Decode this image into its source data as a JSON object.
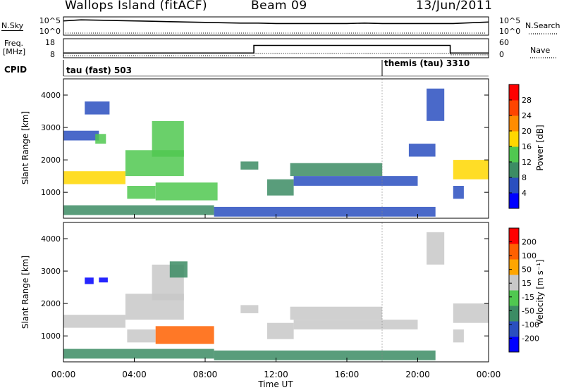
{
  "header": {
    "title": "Wallops Island (fitACF)",
    "beam": "Beam 09",
    "date": "13/Jun/2011"
  },
  "side_labels": {
    "nsky": "N.Sky",
    "nsearch": "N.Search",
    "freq_line1": "Freq.",
    "freq_line2": "[MHz]",
    "nave": "Nave",
    "cpid": "CPID"
  },
  "chart_data": [
    {
      "type": "line",
      "name": "noise-panel",
      "series": [
        {
          "name": "N.Sky",
          "x": [
            "00:00",
            "01:00",
            "02:00",
            "03:00",
            "04:00",
            "05:00",
            "06:00",
            "07:00",
            "08:00",
            "09:00",
            "10:00",
            "11:00",
            "12:00",
            "13:00",
            "14:00",
            "15:00",
            "16:00",
            "17:00",
            "18:00",
            "19:00",
            "20:00",
            "21:00",
            "22:00",
            "23:00",
            "24:00"
          ],
          "values": [
            3.9,
            4.2,
            4.1,
            4.0,
            3.9,
            3.8,
            3.7,
            3.6,
            3.5,
            3.4,
            3.3,
            3.3,
            3.2,
            3.2,
            3.2,
            3.2,
            3.2,
            3.3,
            3.2,
            3.2,
            3.2,
            3.2,
            3.2,
            3.4,
            3.6
          ]
        },
        {
          "name": "N.Search",
          "x": [
            "00:00",
            "24:00"
          ],
          "values": [
            0,
            0
          ]
        }
      ],
      "left_ticks": [
        "10^5",
        "10^0"
      ],
      "right_ticks": [
        "10^5",
        "10^0"
      ]
    },
    {
      "type": "line",
      "name": "frequency-panel",
      "series": [
        {
          "name": "Freq.",
          "x": [
            "00:00",
            "10:45",
            "10:45",
            "21:50",
            "21:50",
            "24:00"
          ],
          "values": [
            10.5,
            10.5,
            14.5,
            14.5,
            10.5,
            10.5
          ]
        },
        {
          "name": "Nave",
          "x": [
            "00:00",
            "10:45",
            "10:45",
            "21:50",
            "21:50",
            "24:00"
          ],
          "values": [
            2,
            2,
            10,
            10,
            5,
            5
          ]
        }
      ],
      "left_ticks": [
        "18",
        "8"
      ],
      "right_ticks": [
        "60",
        "0"
      ]
    },
    {
      "type": "table",
      "name": "cpid-panel",
      "entries": [
        {
          "start": "00:00",
          "label": "tau (fast) 503"
        },
        {
          "start": "18:00",
          "label": "themis (tau) 3310"
        }
      ]
    },
    {
      "type": "heatmap",
      "name": "power-panel",
      "ylabel": "Slant Range [km]",
      "ylim": [
        200,
        4500
      ],
      "yticks": [
        "1000",
        "2000",
        "3000",
        "4000"
      ],
      "colorbar_label": "Power [dB]",
      "colorbar_ticks": [
        "4",
        "8",
        "12",
        "16",
        "20",
        "24",
        "28"
      ],
      "colorbar_range": [
        0,
        32
      ],
      "colors": [
        "#0000ff",
        "#2a4fbf",
        "#3c8c64",
        "#50c850",
        "#ffd700",
        "#ff8c00",
        "#ff4500",
        "#ff0000"
      ],
      "regions": [
        {
          "x": [
            0.0,
            3.5
          ],
          "y": [
            1250,
            1650
          ],
          "v": 18
        },
        {
          "x": [
            3.5,
            6.8
          ],
          "y": [
            1500,
            2300
          ],
          "v": 14
        },
        {
          "x": [
            5.0,
            6.8
          ],
          "y": [
            2100,
            3200
          ],
          "v": 12
        },
        {
          "x": [
            0.0,
            2.0
          ],
          "y": [
            2600,
            2900
          ],
          "v": 6
        },
        {
          "x": [
            1.8,
            2.4
          ],
          "y": [
            2500,
            2800
          ],
          "v": 14
        },
        {
          "x": [
            3.6,
            5.2
          ],
          "y": [
            800,
            1200
          ],
          "v": 14
        },
        {
          "x": [
            5.2,
            8.7
          ],
          "y": [
            750,
            1300
          ],
          "v": 12
        },
        {
          "x": [
            0.0,
            8.5
          ],
          "y": [
            300,
            600
          ],
          "v": 8
        },
        {
          "x": [
            10.0,
            11.0
          ],
          "y": [
            1700,
            1950
          ],
          "v": 10
        },
        {
          "x": [
            11.5,
            13.0
          ],
          "y": [
            900,
            1400
          ],
          "v": 10
        },
        {
          "x": [
            12.8,
            18.0
          ],
          "y": [
            1500,
            1900
          ],
          "v": 8
        },
        {
          "x": [
            13.0,
            20.0
          ],
          "y": [
            1200,
            1500
          ],
          "v": 6
        },
        {
          "x": [
            8.5,
            21.0
          ],
          "y": [
            250,
            550
          ],
          "v": 6
        },
        {
          "x": [
            19.5,
            21.0
          ],
          "y": [
            2100,
            2500
          ],
          "v": 6
        },
        {
          "x": [
            20.5,
            21.5
          ],
          "y": [
            3200,
            4200
          ],
          "v": 6
        },
        {
          "x": [
            22.0,
            24.0
          ],
          "y": [
            1400,
            2000
          ],
          "v": 16
        },
        {
          "x": [
            22.0,
            22.6
          ],
          "y": [
            800,
            1200
          ],
          "v": 6
        },
        {
          "x": [
            1.2,
            2.6
          ],
          "y": [
            3400,
            3800
          ],
          "v": 4
        }
      ]
    },
    {
      "type": "heatmap",
      "name": "velocity-panel",
      "ylabel": "Slant Range [km]",
      "ylim": [
        200,
        4500
      ],
      "yticks": [
        "1000",
        "2000",
        "3000",
        "4000"
      ],
      "colorbar_label": "Velocity [m s⁻¹]",
      "colorbar_ticks": [
        "200",
        "100",
        "50",
        "15",
        "-15",
        "-50",
        "-100",
        "-200"
      ],
      "colorbar_range": [
        -250,
        250
      ],
      "colors": [
        "#0000ff",
        "#2a4fbf",
        "#3c8c64",
        "#50c850",
        "#c8c8c8",
        "#ffa500",
        "#ff6000",
        "#ff0000"
      ],
      "regions": [
        {
          "x": [
            0.0,
            3.5
          ],
          "y": [
            1250,
            1650
          ],
          "v": 0
        },
        {
          "x": [
            3.5,
            6.8
          ],
          "y": [
            1500,
            2300
          ],
          "v": 0
        },
        {
          "x": [
            5.0,
            6.8
          ],
          "y": [
            2100,
            3200
          ],
          "v": 0
        },
        {
          "x": [
            6.0,
            7.0
          ],
          "y": [
            2800,
            3300
          ],
          "v": 30
        },
        {
          "x": [
            1.2,
            1.7
          ],
          "y": [
            2600,
            2800
          ],
          "v": 220
        },
        {
          "x": [
            2.0,
            2.5
          ],
          "y": [
            2650,
            2800
          ],
          "v": 200
        },
        {
          "x": [
            3.6,
            5.2
          ],
          "y": [
            800,
            1200
          ],
          "v": 0
        },
        {
          "x": [
            5.2,
            8.5
          ],
          "y": [
            750,
            1300
          ],
          "v": -60
        },
        {
          "x": [
            0.0,
            8.5
          ],
          "y": [
            300,
            600
          ],
          "v": 30
        },
        {
          "x": [
            8.5,
            21.0
          ],
          "y": [
            250,
            550
          ],
          "v": 30
        },
        {
          "x": [
            10.0,
            11.0
          ],
          "y": [
            1700,
            1950
          ],
          "v": 0
        },
        {
          "x": [
            11.5,
            13.0
          ],
          "y": [
            900,
            1400
          ],
          "v": 0
        },
        {
          "x": [
            12.8,
            18.0
          ],
          "y": [
            1500,
            1900
          ],
          "v": 0
        },
        {
          "x": [
            13.0,
            20.0
          ],
          "y": [
            1200,
            1500
          ],
          "v": 0
        },
        {
          "x": [
            20.5,
            21.5
          ],
          "y": [
            3200,
            4200
          ],
          "v": 0
        },
        {
          "x": [
            22.0,
            24.0
          ],
          "y": [
            1400,
            2000
          ],
          "v": 0
        },
        {
          "x": [
            22.0,
            22.6
          ],
          "y": [
            800,
            1200
          ],
          "v": 0
        }
      ]
    }
  ],
  "xaxis": {
    "label": "Time UT",
    "ticks": [
      "00:00",
      "04:00",
      "08:00",
      "12:00",
      "16:00",
      "20:00",
      "00:00"
    ],
    "range_hours": [
      0,
      24
    ]
  }
}
